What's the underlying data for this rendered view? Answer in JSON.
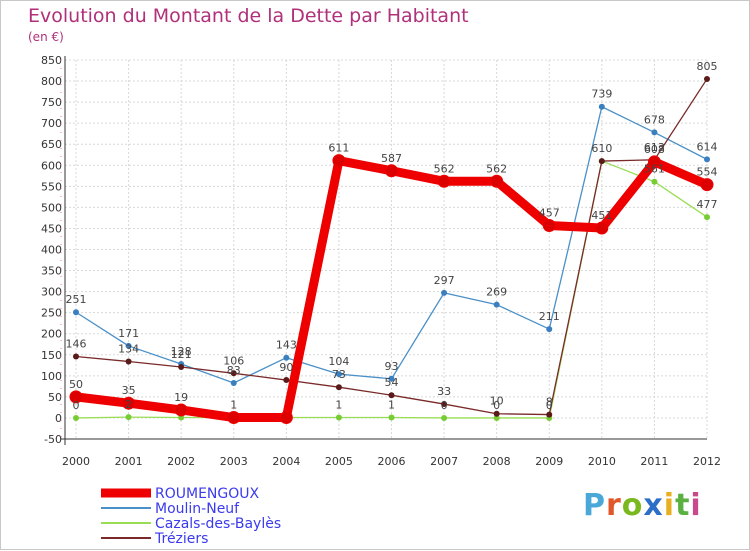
{
  "chart_data": {
    "type": "line",
    "title": "Evolution du Montant de la Dette par Habitant",
    "subtitle": "(en €)",
    "xlabel": "",
    "ylabel": "",
    "x": [
      "2000",
      "2001",
      "2002",
      "2003",
      "2004",
      "2005",
      "2006",
      "2007",
      "2008",
      "2009",
      "2010",
      "2011",
      "2012"
    ],
    "ylim": [
      -50,
      850
    ],
    "yticks": [
      -50,
      0,
      50,
      100,
      150,
      200,
      250,
      300,
      350,
      400,
      450,
      500,
      550,
      600,
      650,
      700,
      750,
      800,
      850
    ],
    "grid": true,
    "legend_position": "bottom-left",
    "series": [
      {
        "name": "Moulin-Neuf",
        "color": "#4a90c8",
        "marker": "#3a7fc0",
        "values": [
          251,
          171,
          128,
          83,
          143,
          104,
          93,
          297,
          269,
          211,
          739,
          678,
          614
        ],
        "labels": [
          "251",
          "171",
          "128",
          "83",
          "143",
          "104",
          "93",
          "297",
          "269",
          "211",
          "739",
          "678",
          "614"
        ]
      },
      {
        "name": "Cazals-des-Baylès",
        "color": "#99dd55",
        "marker": "#77cc33",
        "values": [
          0,
          2,
          1,
          1,
          1,
          1,
          1,
          0,
          0,
          0,
          610,
          561,
          477
        ],
        "labels": [
          "0",
          "2",
          "",
          "",
          "",
          "1",
          "1",
          "0",
          "0",
          "0",
          "",
          "561",
          "477"
        ]
      },
      {
        "name": "Tréziers",
        "color": "#7a2a2a",
        "marker": "#5a1a1a",
        "values": [
          146,
          134,
          121,
          106,
          90,
          73,
          54,
          33,
          10,
          8,
          610,
          613,
          805
        ],
        "labels": [
          "146",
          "134",
          "121",
          "106",
          "90",
          "73",
          "54",
          "33",
          "10",
          "8",
          "610",
          "613",
          "805"
        ]
      },
      {
        "name": "ROUMENGOUX",
        "color": "#ee0000",
        "marker": "#dd0000",
        "values": [
          50,
          35,
          19,
          1,
          1,
          611,
          587,
          562,
          562,
          457,
          451,
          608,
          554
        ],
        "labels": [
          "50",
          "35",
          "19",
          "1",
          "",
          "611",
          "587",
          "562",
          "562",
          "457",
          "451",
          "608",
          "554"
        ]
      }
    ],
    "legend_order": [
      "ROUMENGOUX",
      "Moulin-Neuf",
      "Cazals-des-Baylès",
      "Tréziers"
    ]
  },
  "branding": {
    "logo_text": "Proxiti",
    "logo_colors": [
      "#4aa8d8",
      "#e0582a",
      "#7ab820",
      "#2c6ec8",
      "#e8b020",
      "#5ab040",
      "#c84a8a"
    ]
  }
}
